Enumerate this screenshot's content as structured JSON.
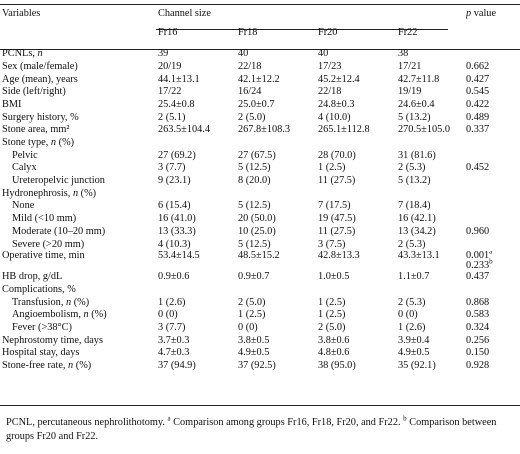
{
  "headers": {
    "variables": "Variables",
    "channel_size": "Channel size",
    "p_value": "p value",
    "groups": [
      "Fr16",
      "Fr18",
      "Fr20",
      "Fr22"
    ]
  },
  "rows": [
    {
      "label": "PCNLs, n",
      "indent": false,
      "cells": [
        "39",
        "40",
        "40",
        "38"
      ],
      "p": "",
      "p2": ""
    },
    {
      "label": "Sex (male/female)",
      "indent": false,
      "cells": [
        "20/19",
        "22/18",
        "17/23",
        "17/21"
      ],
      "p": "0.662",
      "p2": ""
    },
    {
      "label": "Age (mean), years",
      "indent": false,
      "cells": [
        "44.1±13.1",
        "42.1±12.2",
        "45.2±12.4",
        "42.7±11.8"
      ],
      "p": "0.427",
      "p2": ""
    },
    {
      "label": "Side (left/right)",
      "indent": false,
      "cells": [
        "17/22",
        "16/24",
        "22/18",
        "19/19"
      ],
      "p": "0.545",
      "p2": ""
    },
    {
      "label": "BMI",
      "indent": false,
      "cells": [
        "25.4±0.8",
        "25.0±0.7",
        "24.8±0.3",
        "24.6±0.4"
      ],
      "p": "0.422",
      "p2": ""
    },
    {
      "label": "Surgery history, %",
      "indent": false,
      "cells": [
        "2 (5.1)",
        "2 (5.0)",
        "4 (10.0)",
        "5 (13.2)"
      ],
      "p": "0.489",
      "p2": ""
    },
    {
      "label": "Stone area, mm²",
      "indent": false,
      "cells": [
        "263.5±104.4",
        "267.8±108.3",
        "265.1±112.8",
        "270.5±105.0"
      ],
      "p": "0.337",
      "p2": ""
    },
    {
      "label": "Stone type, n (%)",
      "indent": false,
      "cells": [
        "",
        "",
        "",
        ""
      ],
      "p": "",
      "p2": ""
    },
    {
      "label": "Pelvic",
      "indent": true,
      "cells": [
        "27 (69.2)",
        "27 (67.5)",
        "28 (70.0)",
        "31 (81.6)"
      ],
      "p": "",
      "p2": ""
    },
    {
      "label": "Calyx",
      "indent": true,
      "cells": [
        "3 (7.7)",
        "5 (12.5)",
        "1 (2.5)",
        "2 (5.3)"
      ],
      "p": "0.452",
      "p2": ""
    },
    {
      "label": "Ureteropelvic junction",
      "indent": true,
      "cells": [
        "9 (23.1)",
        "8 (20.0)",
        "11 (27.5)",
        "5 (13.2)"
      ],
      "p": "",
      "p2": ""
    },
    {
      "label": "Hydronephrosis, n (%)",
      "indent": false,
      "cells": [
        "",
        "",
        "",
        ""
      ],
      "p": "",
      "p2": ""
    },
    {
      "label": "None",
      "indent": true,
      "cells": [
        "6 (15.4)",
        "5 (12.5)",
        "7 (17.5)",
        "7 (18.4)"
      ],
      "p": "",
      "p2": ""
    },
    {
      "label": "Mild (<10 mm)",
      "indent": true,
      "cells": [
        "16 (41.0)",
        "20 (50.0)",
        "19 (47.5)",
        "16 (42.1)"
      ],
      "p": "",
      "p2": ""
    },
    {
      "label": "Moderate (10–20 mm)",
      "indent": true,
      "cells": [
        "13 (33.3)",
        "10 (25.0)",
        "11 (27.5)",
        "13 (34.2)"
      ],
      "p": "0.960",
      "p2": ""
    },
    {
      "label": "Severe (>20 mm)",
      "indent": true,
      "cells": [
        "4 (10.3)",
        "5 (12.5)",
        "3 (7.5)",
        "2 (5.3)"
      ],
      "p": "",
      "p2": ""
    },
    {
      "label": "Operative time, min",
      "indent": false,
      "cells": [
        "53.4±14.5",
        "48.5±15.2",
        "42.8±13.3",
        "43.3±13.1"
      ],
      "p": "0.001",
      "p_sup": "a",
      "p2": "0.233",
      "p2_sup": "b"
    },
    {
      "label": "HB drop, g/dL",
      "indent": false,
      "cells": [
        "0.9±0.6",
        "0.9±0.7",
        "1.0±0.5",
        "1.1±0.7"
      ],
      "p": "0.437",
      "p2": ""
    },
    {
      "label": "Complications, %",
      "indent": false,
      "cells": [
        "",
        "",
        "",
        ""
      ],
      "p": "",
      "p2": ""
    },
    {
      "label": "Transfusion, n (%)",
      "indent": true,
      "cells": [
        "1 (2.6)",
        "2 (5.0)",
        "1 (2.5)",
        "2 (5.3)"
      ],
      "p": "0.868",
      "p2": ""
    },
    {
      "label": "Angioembolism, n (%)",
      "indent": true,
      "cells": [
        "0 (0)",
        "1 (2.5)",
        "1 (2.5)",
        "0 (0)"
      ],
      "p": "0.583",
      "p2": ""
    },
    {
      "label": "Fever (>38°C)",
      "indent": true,
      "cells": [
        "3 (7.7)",
        "0 (0)",
        "2 (5.0)",
        "1 (2.6)"
      ],
      "p": "0.324",
      "p2": ""
    },
    {
      "label": "Nephrostomy time, days",
      "indent": false,
      "cells": [
        "3.7±0.3",
        "3.8±0.5",
        "3.8±0.6",
        "3.9±0.4"
      ],
      "p": "0.256",
      "p2": ""
    },
    {
      "label": "Hospital stay, days",
      "indent": false,
      "cells": [
        "4.7±0.3",
        "4.9±0.5",
        "4.8±0.6",
        "4.9±0.5"
      ],
      "p": "0.150",
      "p2": ""
    },
    {
      "label": "Stone-free rate, n (%)",
      "indent": false,
      "cells": [
        "37 (94.9)",
        "37 (92.5)",
        "38 (95.0)",
        "35 (92.1)"
      ],
      "p": "0.928",
      "p2": ""
    }
  ],
  "footnote": {
    "text1": "PCNL, percutaneous nephrolithotomy. ",
    "sup_a": "a",
    "text2": " Comparison among groups Fr16, Fr18, Fr20, and Fr22. ",
    "sup_b": "b",
    "text3": " Comparison between groups Fr20 and Fr22."
  }
}
